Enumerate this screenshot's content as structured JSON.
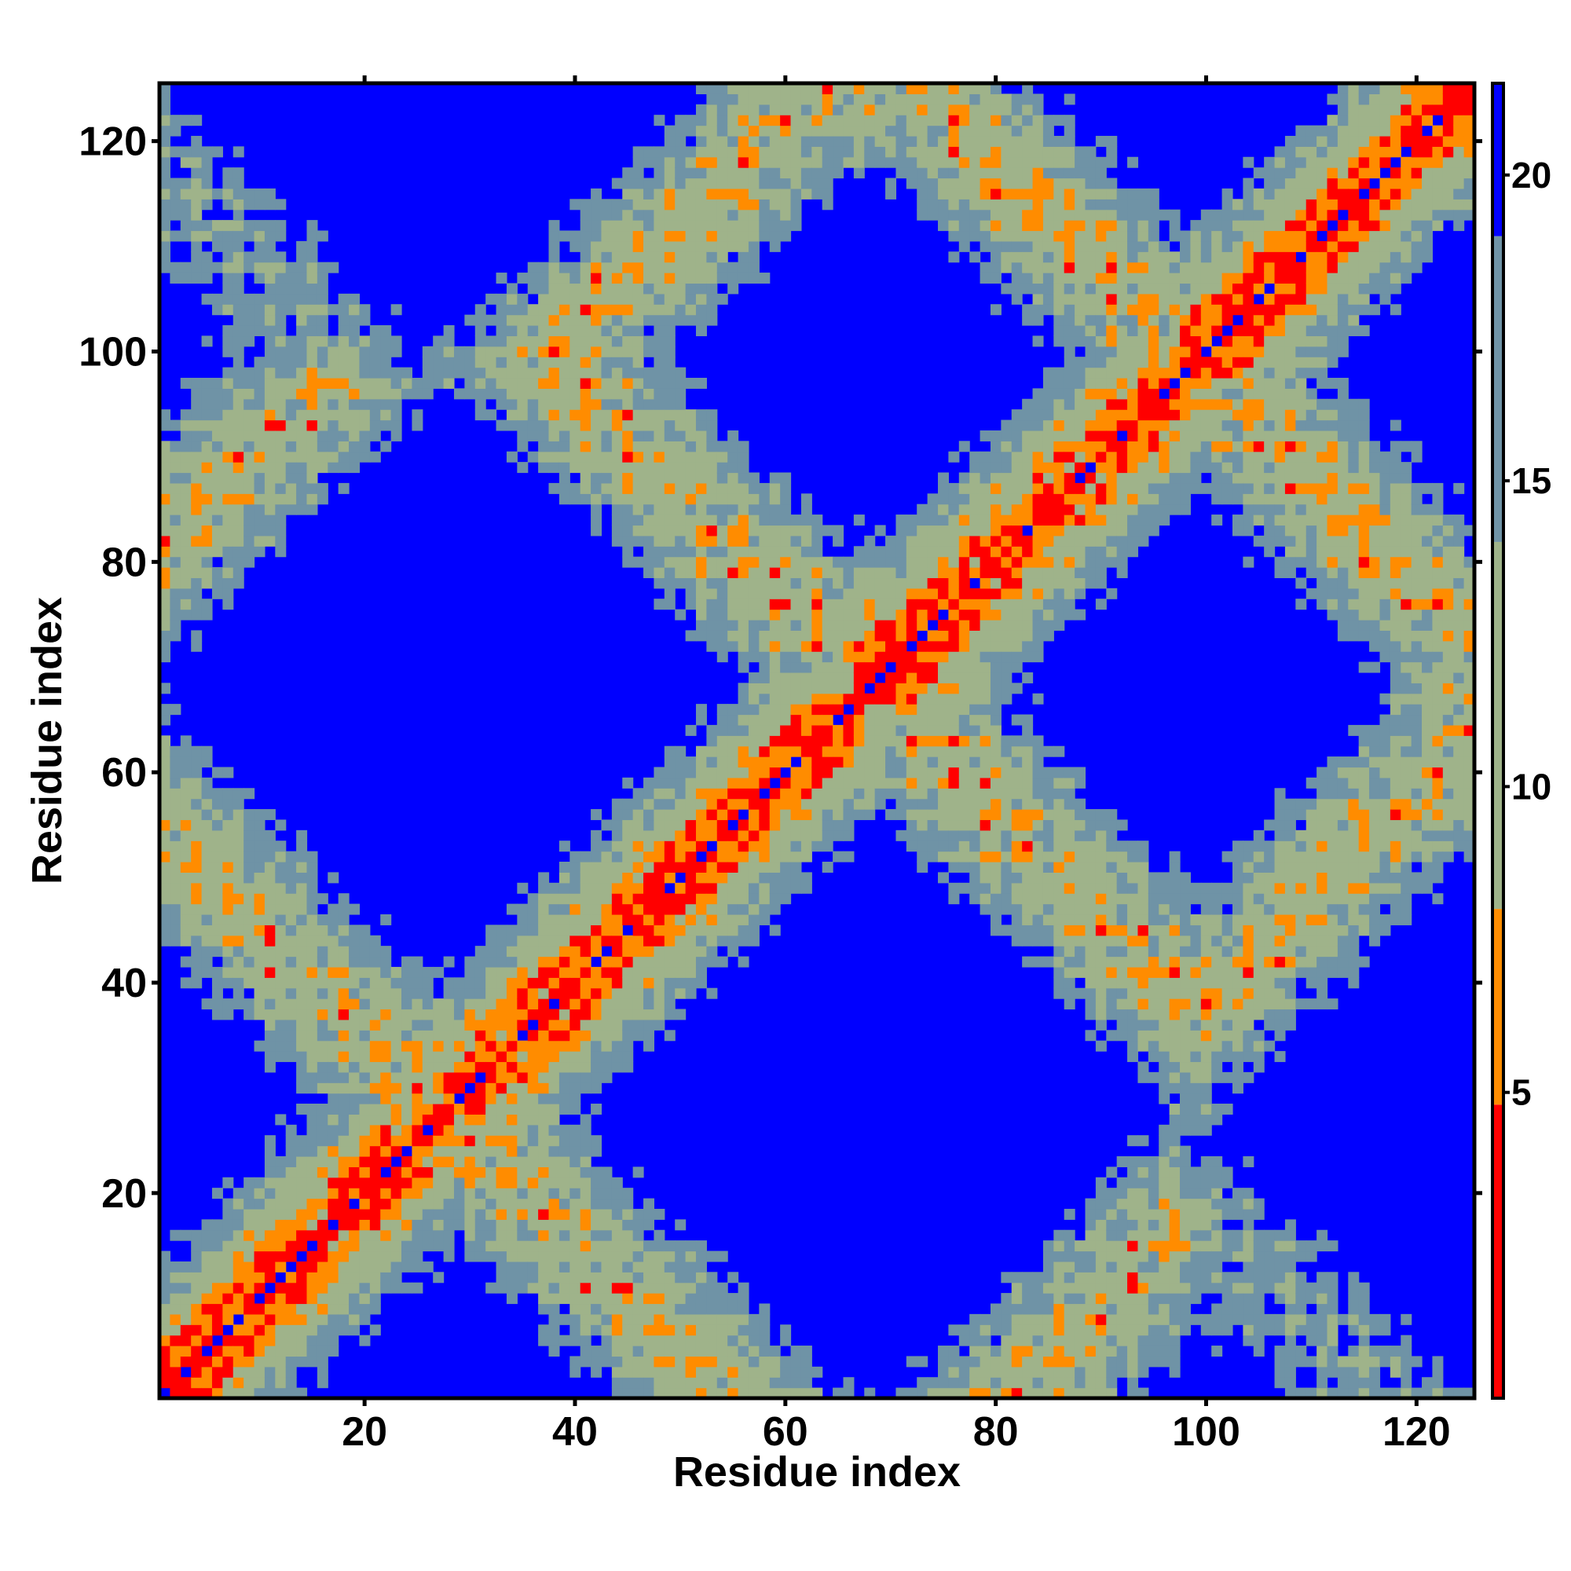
{
  "chart_data": {
    "type": "heatmap",
    "title": "",
    "xlabel": "Residue index",
    "ylabel": "Residue index",
    "n_residues": 125,
    "xlim": [
      1,
      125
    ],
    "ylim": [
      1,
      125
    ],
    "x_ticks": [
      20,
      40,
      60,
      80,
      100,
      120
    ],
    "y_ticks": [
      20,
      40,
      60,
      80,
      100,
      120
    ],
    "colorbar": {
      "ticks": [
        5,
        10,
        15,
        20
      ],
      "range": [
        0,
        21.5
      ],
      "segments": [
        {
          "from": 0,
          "to": 4.8,
          "color": "#ff0000"
        },
        {
          "from": 4.8,
          "to": 8.0,
          "color": "#ff8c00"
        },
        {
          "from": 8.0,
          "to": 14.0,
          "color": "#9fb38a"
        },
        {
          "from": 14.0,
          "to": 19.0,
          "color": "#6f93a6"
        },
        {
          "from": 19.0,
          "to": 21.5,
          "color": "#0000ff"
        }
      ]
    },
    "colors": {
      "contact_close": "#ff0000",
      "contact_near": "#ffa500",
      "mid_distance": "#a5b98a",
      "far_distance": "#7da0a8",
      "no_contact": "#0000ff"
    },
    "secondary_structure_contacts": [
      {
        "description": "main diagonal",
        "i_from": 1,
        "i_to": 125,
        "j_offset": 0
      },
      {
        "description": "helix band",
        "i_from": 40,
        "i_to": 66,
        "parallel": true
      },
      {
        "description": "helix band",
        "i_from": 98,
        "i_to": 125,
        "parallel": true
      },
      {
        "description": "antiparallel contact",
        "i": [
          18,
          26
        ],
        "j": [
          38,
          28
        ]
      },
      {
        "description": "antiparallel contact",
        "i": [
          28,
          36
        ],
        "j": [
          26,
          20
        ]
      },
      {
        "description": "antiparallel contact",
        "i": [
          16,
          26
        ],
        "j": [
          99,
          87
        ]
      },
      {
        "description": "antiparallel contact",
        "i": [
          69,
          78
        ],
        "j": [
          86,
          78
        ]
      },
      {
        "description": "antiparallel contact",
        "i": [
          79,
          86
        ],
        "j": [
          78,
          70
        ]
      },
      {
        "description": "antiparallel contact",
        "i": [
          78,
          88
        ],
        "j": [
          97,
          88
        ]
      },
      {
        "description": "antiparallel contact",
        "i": [
          88,
          97
        ],
        "j": [
          88,
          80
        ]
      },
      {
        "description": "antiparallel contact",
        "i": [
          87,
          98
        ],
        "j": [
          27,
          17
        ]
      }
    ]
  }
}
